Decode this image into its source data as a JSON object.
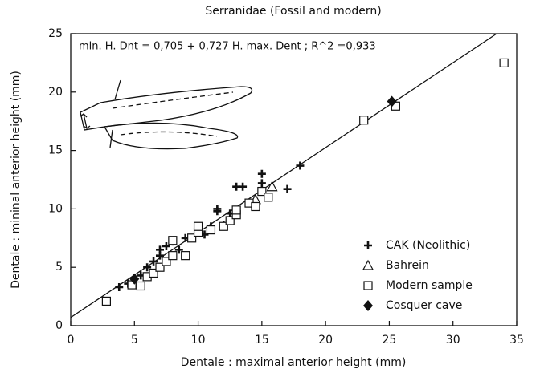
{
  "chart_data": {
    "type": "scatter",
    "title": "Serranidae (Fossil and modern)",
    "xlabel": "Dentale : maximal anterior height (mm)",
    "ylabel": "Dentale : mininal anterior height (mm)",
    "annotation": "min. H. Dnt = 0,705 + 0,727  H. max. Dent ;  R^2 =0,933",
    "fit": {
      "intercept": 0.705,
      "slope": 0.727
    },
    "xlim": [
      0,
      35
    ],
    "xticks": [
      0,
      5,
      10,
      15,
      20,
      25,
      30,
      35
    ],
    "ylim": [
      0,
      25
    ],
    "yticks": [
      0,
      5,
      10,
      15,
      20,
      25
    ],
    "legend": "lower right",
    "series": [
      {
        "name": "CAK (Neolithic)",
        "marker": "plus",
        "color": "#111111",
        "x": [
          3.8,
          4.5,
          5.5,
          6,
          6.5,
          7,
          7,
          7.5,
          8,
          8.5,
          9,
          10,
          10.5,
          11,
          11.5,
          11.5,
          12,
          12.5,
          13,
          13.5,
          15,
          15,
          17,
          18
        ],
        "values": [
          3.3,
          3.6,
          4.3,
          5,
          5.5,
          6,
          6.5,
          6.8,
          7.2,
          6.5,
          7.5,
          8,
          7.8,
          8.5,
          9.8,
          10,
          8.6,
          9.6,
          11.9,
          11.9,
          13,
          12.2,
          11.7,
          13.7
        ]
      },
      {
        "name": "Bahrein",
        "marker": "triangle",
        "color": "#111111",
        "x": [
          14.5,
          15.8
        ],
        "values": [
          10.8,
          11.9
        ]
      },
      {
        "name": "Modern sample",
        "marker": "square",
        "color": "#111111",
        "x": [
          2.8,
          4.8,
          5.5,
          6,
          6.5,
          7,
          7.5,
          8,
          8,
          9,
          9.5,
          10,
          10,
          11,
          12,
          12.5,
          13,
          13,
          14,
          14.5,
          15,
          15.5,
          23,
          25.5,
          34
        ],
        "values": [
          2.1,
          3.5,
          3.4,
          4.2,
          4.5,
          5,
          5.5,
          6,
          7.3,
          6,
          7.5,
          8,
          8.5,
          8.2,
          8.5,
          9,
          9.5,
          9.9,
          10.5,
          10.2,
          11.5,
          11,
          17.6,
          18.8,
          22.5
        ]
      },
      {
        "name": "Cosquer cave",
        "marker": "diamond",
        "color": "#111111",
        "x": [
          5,
          25.2
        ],
        "values": [
          4,
          19.2
        ]
      }
    ]
  }
}
